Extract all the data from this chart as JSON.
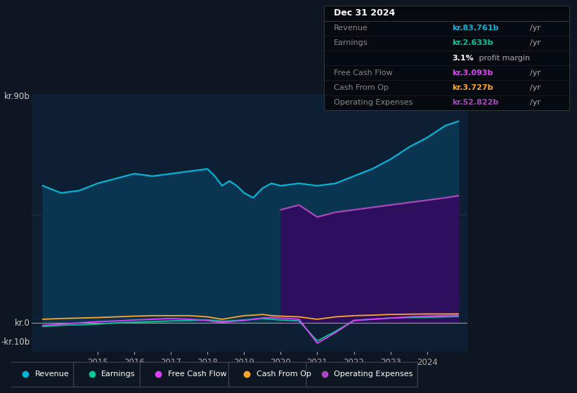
{
  "bg_color": "#0e1621",
  "plot_bg_color": "#0d1f33",
  "ylabel_top": "kr.90b",
  "ylabel_zero": "kr.0",
  "ylabel_bottom": "-kr.10b",
  "legend": [
    {
      "label": "Revenue",
      "color": "#00b4d8"
    },
    {
      "label": "Earnings",
      "color": "#00c896"
    },
    {
      "label": "Free Cash Flow",
      "color": "#e040fb"
    },
    {
      "label": "Cash From Op",
      "color": "#ffa726"
    },
    {
      "label": "Operating Expenses",
      "color": "#ab47bc"
    }
  ],
  "x_years": [
    2013.5,
    2014.0,
    2014.5,
    2015.0,
    2015.5,
    2016.0,
    2016.5,
    2017.0,
    2017.5,
    2018.0,
    2018.2,
    2018.4,
    2018.6,
    2018.8,
    2019.0,
    2019.25,
    2019.5,
    2019.75,
    2020.0,
    2020.5,
    2021.0,
    2021.5,
    2022.0,
    2022.5,
    2023.0,
    2023.5,
    2024.0,
    2024.5,
    2024.85
  ],
  "revenue": [
    57,
    54,
    55,
    58,
    60,
    62,
    61,
    62,
    63,
    64,
    61,
    57,
    59,
    57,
    54,
    52,
    56,
    58,
    57,
    58,
    57,
    58,
    61,
    64,
    68,
    73,
    77,
    82,
    83.761
  ],
  "earnings": [
    -1.5,
    -1.0,
    -0.8,
    -0.5,
    0.0,
    0.3,
    0.5,
    0.8,
    1.0,
    1.2,
    1.0,
    0.7,
    0.8,
    1.0,
    1.2,
    1.5,
    1.8,
    1.5,
    1.2,
    0.8,
    -7.5,
    -3.5,
    1.0,
    1.5,
    2.0,
    2.2,
    2.3,
    2.5,
    2.633
  ],
  "free_cash_flow": [
    -1.0,
    -0.5,
    0.0,
    0.5,
    0.8,
    1.2,
    1.5,
    1.8,
    1.5,
    1.0,
    0.5,
    0.3,
    0.5,
    0.8,
    1.0,
    1.5,
    2.0,
    2.2,
    2.0,
    1.5,
    -8.5,
    -4.0,
    1.0,
    1.5,
    2.0,
    2.5,
    2.8,
    3.0,
    3.093
  ],
  "cash_from_op": [
    1.5,
    1.8,
    2.0,
    2.2,
    2.5,
    2.8,
    3.0,
    3.0,
    3.0,
    2.5,
    2.0,
    1.5,
    2.0,
    2.5,
    3.0,
    3.2,
    3.5,
    3.0,
    2.8,
    2.5,
    1.5,
    2.5,
    3.0,
    3.2,
    3.5,
    3.6,
    3.7,
    3.7,
    3.727
  ],
  "op_expenses_x": [
    2020.0,
    2020.5,
    2021.0,
    2021.5,
    2022.0,
    2022.5,
    2023.0,
    2023.5,
    2024.0,
    2024.5,
    2024.85
  ],
  "op_expenses": [
    47,
    49,
    44,
    46,
    47,
    48,
    49,
    50,
    51,
    52,
    52.822
  ],
  "xlim": [
    2013.2,
    2025.1
  ],
  "ylim": [
    -12,
    95
  ],
  "y_top_val": 90,
  "y_zero_val": 0,
  "y_bottom_val": -10,
  "xticks": [
    2015,
    2016,
    2017,
    2018,
    2019,
    2020,
    2021,
    2022,
    2023,
    2024
  ],
  "info_box": {
    "title": "Dec 31 2024",
    "rows": [
      {
        "label": "Revenue",
        "value": "kr.83.761b",
        "unit": "/yr",
        "value_color": "#00b4d8",
        "label_color": "#888888"
      },
      {
        "label": "Earnings",
        "value": "kr.2.633b",
        "unit": "/yr",
        "value_color": "#00c896",
        "label_color": "#888888"
      },
      {
        "label": "",
        "value": "3.1%",
        "unit": " profit margin",
        "value_color": "#ffffff",
        "label_color": "#888888"
      },
      {
        "label": "Free Cash Flow",
        "value": "kr.3.093b",
        "unit": "/yr",
        "value_color": "#e040fb",
        "label_color": "#888888"
      },
      {
        "label": "Cash From Op",
        "value": "kr.3.727b",
        "unit": "/yr",
        "value_color": "#ffa726",
        "label_color": "#888888"
      },
      {
        "label": "Operating Expenses",
        "value": "kr.52.822b",
        "unit": "/yr",
        "value_color": "#ab47bc",
        "label_color": "#888888"
      }
    ]
  }
}
